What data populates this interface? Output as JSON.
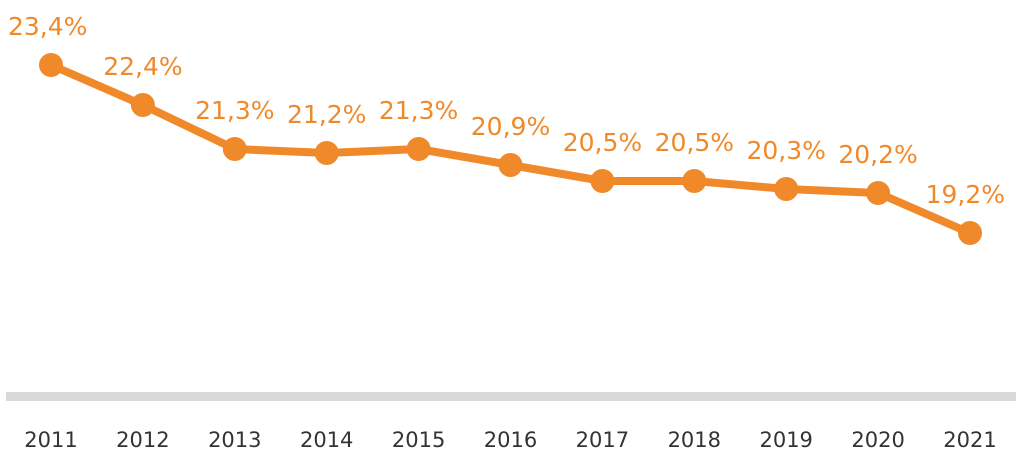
{
  "chart_data": {
    "type": "line",
    "x": [
      "2011",
      "2012",
      "2013",
      "2014",
      "2015",
      "2016",
      "2017",
      "2018",
      "2019",
      "2020",
      "2021"
    ],
    "series": [
      {
        "values": [
          23.4,
          22.4,
          21.3,
          21.2,
          21.3,
          20.9,
          20.5,
          20.5,
          20.3,
          20.2,
          19.2
        ],
        "labels": [
          "23,4%",
          "22,4%",
          "21,3%",
          "21,2%",
          "21,3%",
          "20,9%",
          "20,5%",
          "20,5%",
          "20,3%",
          "20,2%",
          "19,2%"
        ]
      }
    ],
    "title": "",
    "xlabel": "",
    "ylabel": "",
    "grid": false,
    "legend": "none",
    "colors": {
      "line": "#f0892a",
      "axis": "#d9d9d9",
      "tick_text": "#333333"
    }
  }
}
